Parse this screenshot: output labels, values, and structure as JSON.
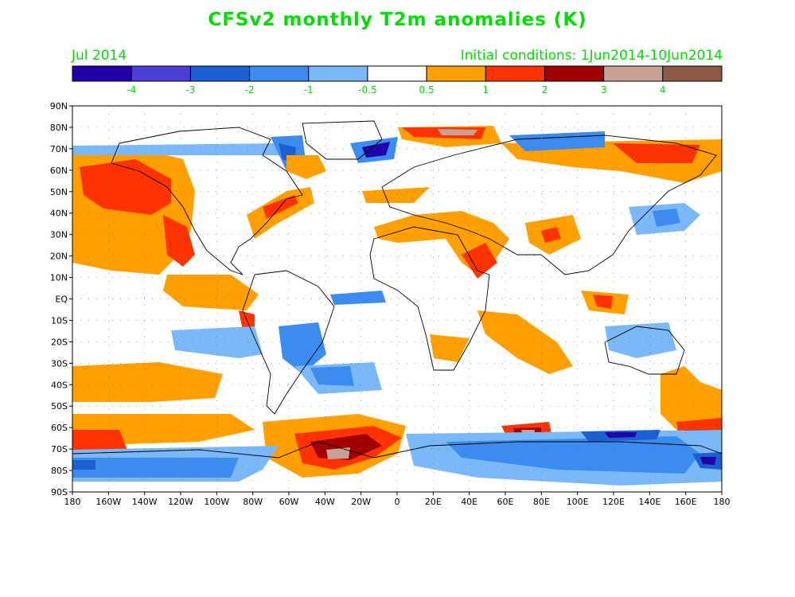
{
  "title": "CFSv2 monthly T2m anomalies (K)",
  "valid_month": "Jul 2014",
  "initial_conditions": "Initial conditions: 1Jun2014-10Jun2014",
  "colorbar": {
    "colors": [
      "#2200aa",
      "#4c3fd6",
      "#1b5fd1",
      "#3c8cf0",
      "#7ab8f8",
      "#ffffff",
      "#ffa000",
      "#ff3300",
      "#a00000",
      "#c8a094",
      "#8c5a46"
    ],
    "labels": [
      "-4",
      "-3",
      "-2",
      "-1",
      "-0.5",
      "0.5",
      "1",
      "2",
      "3",
      "4"
    ]
  },
  "map": {
    "lat_labels": [
      "90N",
      "80N",
      "70N",
      "60N",
      "50N",
      "40N",
      "30N",
      "20N",
      "10N",
      "EQ",
      "10S",
      "20S",
      "30S",
      "40S",
      "50S",
      "60S",
      "70S",
      "80S",
      "90S"
    ],
    "lon_labels": [
      "180",
      "160W",
      "140W",
      "120W",
      "100W",
      "80W",
      "60W",
      "40W",
      "20W",
      "0",
      "20E",
      "40E",
      "60E",
      "80E",
      "100E",
      "120E",
      "140E",
      "160E",
      "180"
    ]
  }
}
